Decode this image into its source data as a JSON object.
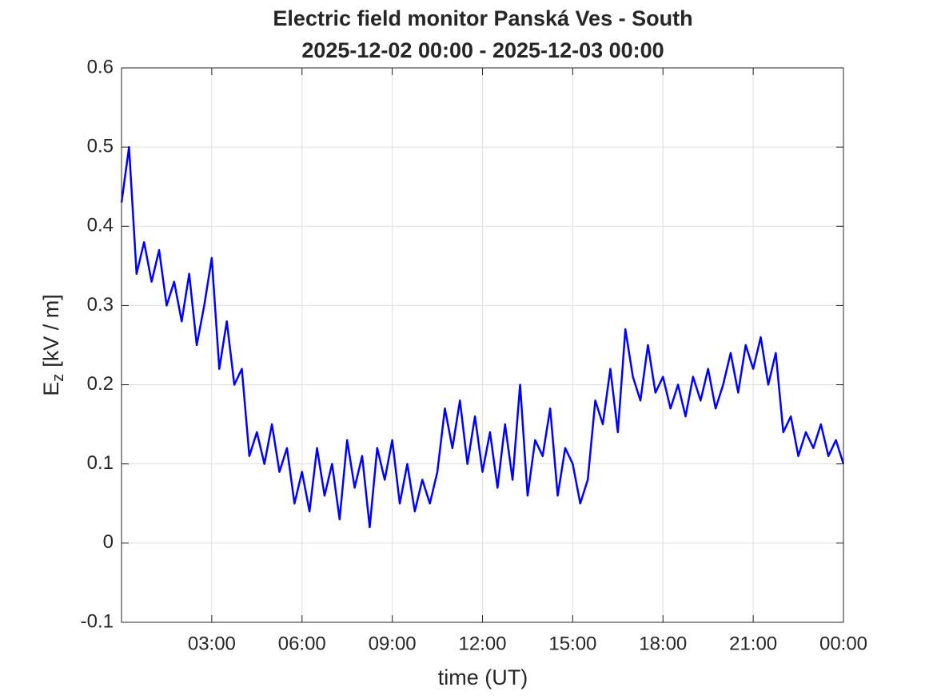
{
  "chart_data": {
    "type": "line",
    "title": "Electric field monitor Panská Ves - South",
    "subtitle": "2025-12-02 00:00 - 2025-12-03 00:00",
    "xlabel": "time (UT)",
    "ylabel": "E",
    "ylabel_sub": "z",
    "ylabel_unit": "[kV / m]",
    "x": [
      0,
      0.25,
      0.5,
      0.75,
      1,
      1.25,
      1.5,
      1.75,
      2,
      2.25,
      2.5,
      2.75,
      3,
      3.25,
      3.5,
      3.75,
      4,
      4.25,
      4.5,
      4.75,
      5,
      5.25,
      5.5,
      5.75,
      6,
      6.25,
      6.5,
      6.75,
      7,
      7.25,
      7.5,
      7.75,
      8,
      8.25,
      8.5,
      8.75,
      9,
      9.25,
      9.5,
      9.75,
      10,
      10.25,
      10.5,
      10.75,
      11,
      11.25,
      11.5,
      11.75,
      12,
      12.25,
      12.5,
      12.75,
      13,
      13.25,
      13.5,
      13.75,
      14,
      14.25,
      14.5,
      14.75,
      15,
      15.25,
      15.5,
      15.75,
      16,
      16.25,
      16.5,
      16.75,
      17,
      17.25,
      17.5,
      17.75,
      18,
      18.25,
      18.5,
      18.75,
      19,
      19.25,
      19.5,
      19.75,
      20,
      20.25,
      20.5,
      20.75,
      21,
      21.25,
      21.5,
      21.75,
      22,
      22.25,
      22.5,
      22.75,
      23,
      23.25,
      23.5,
      23.75,
      24
    ],
    "series": [
      {
        "name": "Ez",
        "color": "#0000ff",
        "values": [
          0.43,
          0.5,
          0.34,
          0.38,
          0.33,
          0.37,
          0.3,
          0.33,
          0.28,
          0.34,
          0.25,
          0.3,
          0.36,
          0.22,
          0.28,
          0.2,
          0.22,
          0.11,
          0.14,
          0.1,
          0.15,
          0.09,
          0.12,
          0.05,
          0.09,
          0.04,
          0.12,
          0.06,
          0.1,
          0.03,
          0.13,
          0.07,
          0.11,
          0.02,
          0.12,
          0.08,
          0.13,
          0.05,
          0.1,
          0.04,
          0.08,
          0.05,
          0.09,
          0.17,
          0.12,
          0.18,
          0.1,
          0.16,
          0.09,
          0.14,
          0.07,
          0.15,
          0.08,
          0.2,
          0.06,
          0.13,
          0.11,
          0.17,
          0.06,
          0.12,
          0.1,
          0.05,
          0.08,
          0.18,
          0.15,
          0.22,
          0.14,
          0.27,
          0.21,
          0.18,
          0.25,
          0.19,
          0.21,
          0.17,
          0.2,
          0.16,
          0.21,
          0.18,
          0.22,
          0.17,
          0.2,
          0.24,
          0.19,
          0.25,
          0.22,
          0.26,
          0.2,
          0.24,
          0.14,
          0.16,
          0.11,
          0.14,
          0.12,
          0.15,
          0.11,
          0.13,
          0.1
        ]
      }
    ],
    "xlim": [
      0,
      24
    ],
    "xticks": [
      {
        "value": 3,
        "label": "03:00"
      },
      {
        "value": 6,
        "label": "06:00"
      },
      {
        "value": 9,
        "label": "09:00"
      },
      {
        "value": 12,
        "label": "12:00"
      },
      {
        "value": 15,
        "label": "15:00"
      },
      {
        "value": 18,
        "label": "18:00"
      },
      {
        "value": 21,
        "label": "21:00"
      },
      {
        "value": 24,
        "label": "00:00"
      }
    ],
    "ylim": [
      -0.1,
      0.6
    ],
    "yticks": [
      -0.1,
      0,
      0.1,
      0.2,
      0.3,
      0.4,
      0.5,
      0.6
    ],
    "grid": true
  }
}
